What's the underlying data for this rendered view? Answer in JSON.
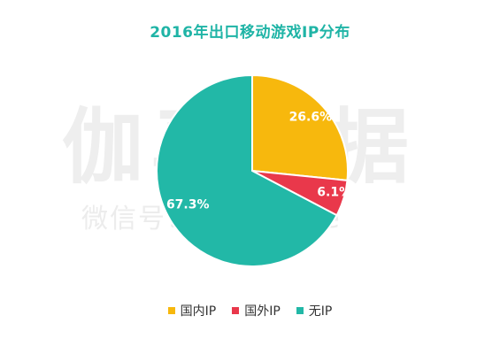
{
  "title": "2016年出口移动游戏IP分布",
  "watermark": {
    "main": "伽马数据",
    "sub": "微信号：CNGgame"
  },
  "colors": {
    "title": "#1fb4a6",
    "domestic_ip": "#f7b80d",
    "foreign_ip": "#e9384b",
    "no_ip": "#22b8a7"
  },
  "chart_data": {
    "type": "pie",
    "title": "2016年出口移动游戏IP分布",
    "legend_position": "bottom",
    "slices": [
      {
        "name": "国内IP",
        "value": 26.6,
        "label": "26.6%",
        "color": "#f7b80d"
      },
      {
        "name": "国外IP",
        "value": 6.1,
        "label": "6.1%",
        "color": "#e9384b"
      },
      {
        "name": "无IP",
        "value": 67.3,
        "label": "67.3%",
        "color": "#22b8a7"
      }
    ]
  }
}
